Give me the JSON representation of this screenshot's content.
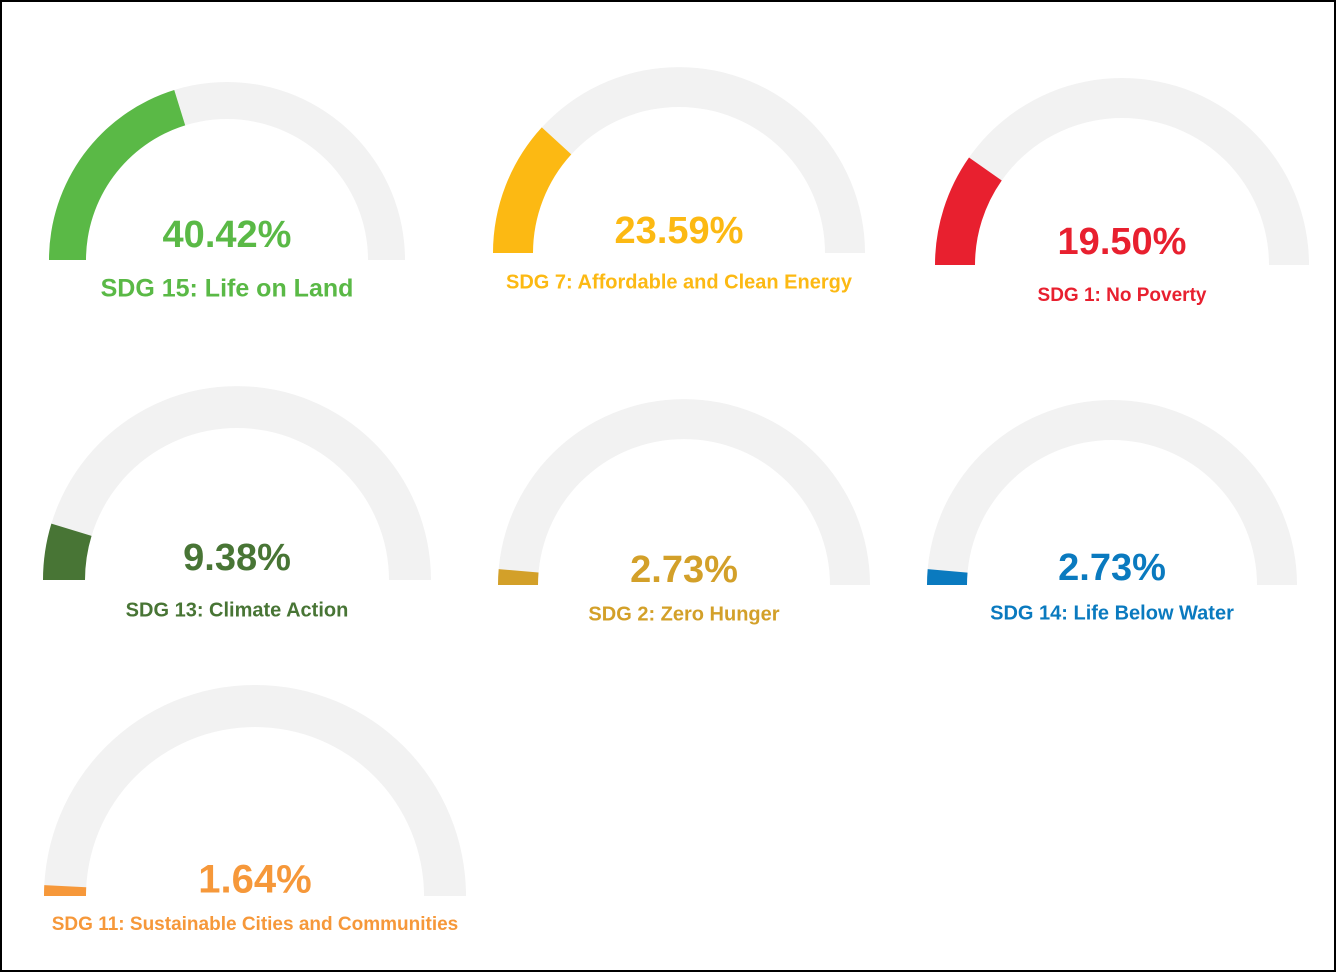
{
  "chart_data": [
    {
      "type": "gauge",
      "title": "SDG 15: Life on Land",
      "values": [
        40.42
      ],
      "value_labels": [
        "40.42%"
      ],
      "color": "#5ab946",
      "ylim": [
        0,
        100
      ]
    },
    {
      "type": "gauge",
      "title": "SDG 7: Affordable and Clean Energy",
      "values": [
        23.59
      ],
      "value_labels": [
        "23.59%"
      ],
      "color": "#fcb913",
      "ylim": [
        0,
        100
      ]
    },
    {
      "type": "gauge",
      "title": "SDG 1: No Poverty",
      "values": [
        19.5
      ],
      "value_labels": [
        "19.50%"
      ],
      "color": "#e8202f",
      "ylim": [
        0,
        100
      ]
    },
    {
      "type": "gauge",
      "title": "SDG 13: Climate Action",
      "values": [
        9.38
      ],
      "value_labels": [
        "9.38%"
      ],
      "color": "#487535",
      "ylim": [
        0,
        100
      ]
    },
    {
      "type": "gauge",
      "title": "SDG 2: Zero Hunger",
      "values": [
        2.73
      ],
      "value_labels": [
        "2.73%"
      ],
      "color": "#d3a029",
      "ylim": [
        0,
        100
      ]
    },
    {
      "type": "gauge",
      "title": "SDG 14: Life Below Water",
      "values": [
        2.73
      ],
      "value_labels": [
        "2.73%"
      ],
      "color": "#0a7abf",
      "ylim": [
        0,
        100
      ]
    },
    {
      "type": "gauge",
      "title": "SDG 11: Sustainable Cities and Communities",
      "values": [
        1.64
      ],
      "value_labels": [
        "1.64%"
      ],
      "color": "#f6983a",
      "ylim": [
        0,
        100
      ]
    }
  ]
}
